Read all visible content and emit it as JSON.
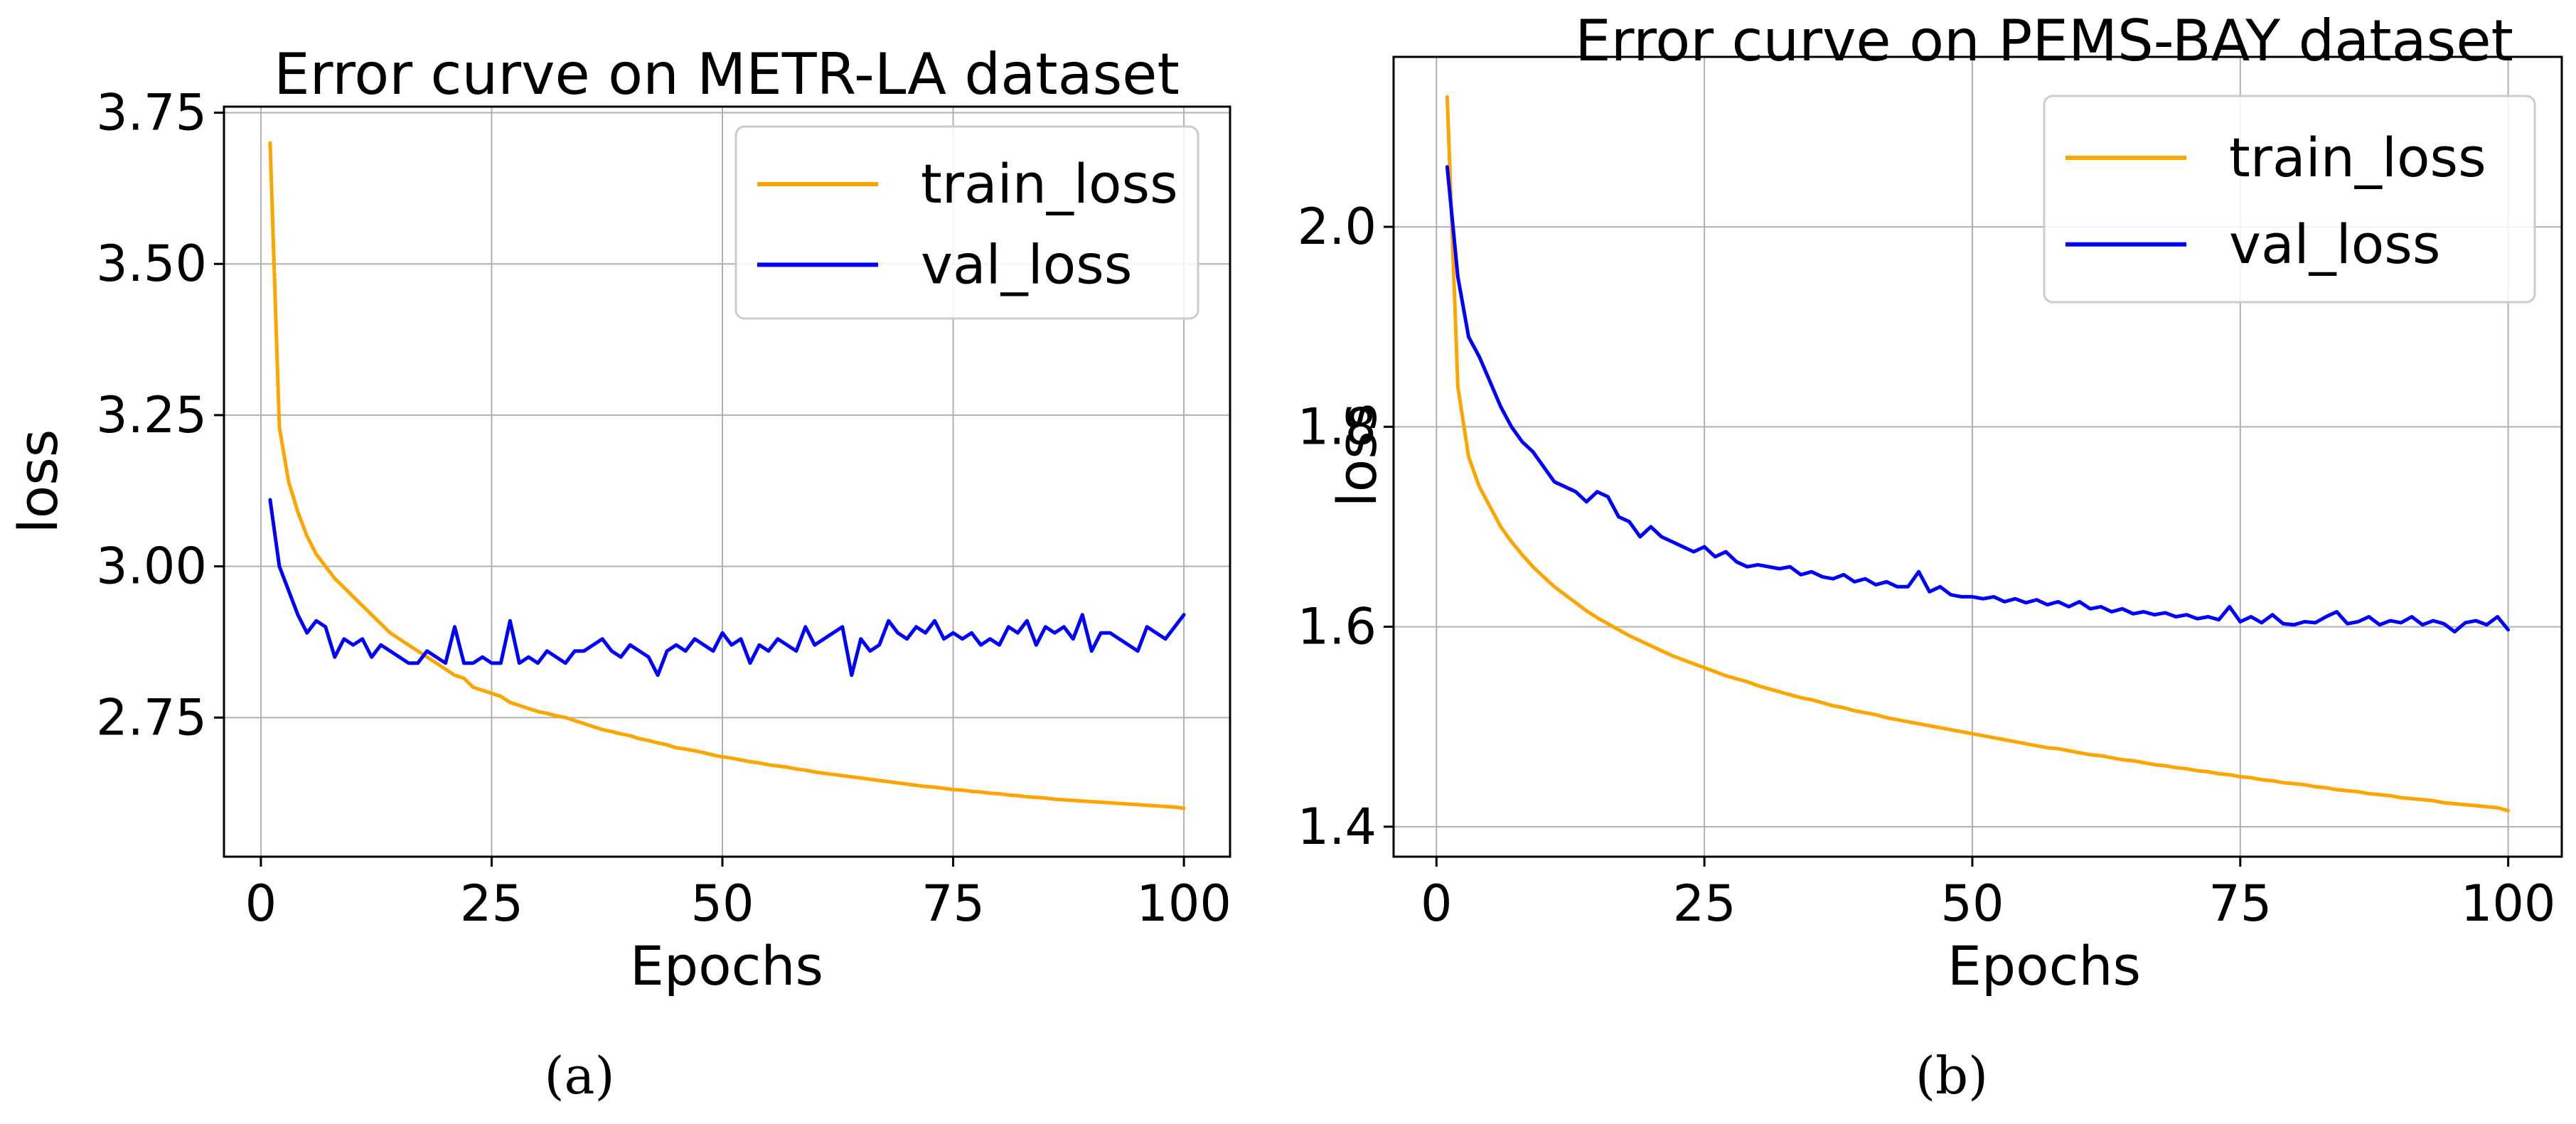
{
  "figure_captions": [
    "(a)",
    "(b)"
  ],
  "chart_data": [
    {
      "type": "line",
      "title": "Error curve on METR-LA dataset",
      "xlabel": "Epochs",
      "ylabel": "loss",
      "xlim": [
        -4,
        105
      ],
      "ylim": [
        2.52,
        3.76
      ],
      "xticks": [
        0,
        25,
        50,
        75,
        100
      ],
      "xtick_labels": [
        "0",
        "25",
        "50",
        "75",
        "100"
      ],
      "yticks": [
        2.75,
        3.0,
        3.25,
        3.5,
        3.75
      ],
      "ytick_labels": [
        "2.75",
        "3.00",
        "3.25",
        "3.50",
        "3.75"
      ],
      "grid": true,
      "legend_position": "top-right",
      "caption": "(a)",
      "series": [
        {
          "name": "train_loss",
          "color": "#FFA500",
          "x": [
            1,
            2,
            3,
            4,
            5,
            6,
            7,
            8,
            9,
            10,
            11,
            12,
            13,
            14,
            15,
            16,
            17,
            18,
            19,
            20,
            21,
            22,
            23,
            24,
            25,
            26,
            27,
            28,
            29,
            30,
            31,
            32,
            33,
            34,
            35,
            36,
            37,
            38,
            39,
            40,
            41,
            42,
            43,
            44,
            45,
            46,
            47,
            48,
            49,
            50,
            51,
            52,
            53,
            54,
            55,
            56,
            57,
            58,
            59,
            60,
            61,
            62,
            63,
            64,
            65,
            66,
            67,
            68,
            69,
            70,
            71,
            72,
            73,
            74,
            75,
            76,
            77,
            78,
            79,
            80,
            81,
            82,
            83,
            84,
            85,
            86,
            87,
            88,
            89,
            90,
            91,
            92,
            93,
            94,
            95,
            96,
            97,
            98,
            99,
            100
          ],
          "values": [
            3.7,
            3.23,
            3.14,
            3.09,
            3.05,
            3.02,
            3.0,
            2.98,
            2.965,
            2.95,
            2.935,
            2.92,
            2.905,
            2.89,
            2.88,
            2.87,
            2.86,
            2.85,
            2.84,
            2.83,
            2.82,
            2.815,
            2.8,
            2.795,
            2.79,
            2.785,
            2.775,
            2.77,
            2.765,
            2.76,
            2.757,
            2.753,
            2.75,
            2.745,
            2.74,
            2.735,
            2.73,
            2.727,
            2.723,
            2.72,
            2.715,
            2.712,
            2.708,
            2.705,
            2.7,
            2.698,
            2.695,
            2.692,
            2.688,
            2.685,
            2.683,
            2.68,
            2.677,
            2.675,
            2.672,
            2.67,
            2.668,
            2.665,
            2.663,
            2.66,
            2.658,
            2.656,
            2.654,
            2.652,
            2.65,
            2.648,
            2.646,
            2.644,
            2.642,
            2.64,
            2.638,
            2.636,
            2.635,
            2.633,
            2.631,
            2.63,
            2.628,
            2.627,
            2.625,
            2.624,
            2.622,
            2.621,
            2.619,
            2.618,
            2.617,
            2.615,
            2.614,
            2.613,
            2.612,
            2.611,
            2.61,
            2.609,
            2.608,
            2.607,
            2.606,
            2.605,
            2.604,
            2.603,
            2.602,
            2.6
          ]
        },
        {
          "name": "val_loss",
          "color": "#0000FF",
          "x": [
            1,
            2,
            3,
            4,
            5,
            6,
            7,
            8,
            9,
            10,
            11,
            12,
            13,
            14,
            15,
            16,
            17,
            18,
            19,
            20,
            21,
            22,
            23,
            24,
            25,
            26,
            27,
            28,
            29,
            30,
            31,
            32,
            33,
            34,
            35,
            36,
            37,
            38,
            39,
            40,
            41,
            42,
            43,
            44,
            45,
            46,
            47,
            48,
            49,
            50,
            51,
            52,
            53,
            54,
            55,
            56,
            57,
            58,
            59,
            60,
            61,
            62,
            63,
            64,
            65,
            66,
            67,
            68,
            69,
            70,
            71,
            72,
            73,
            74,
            75,
            76,
            77,
            78,
            79,
            80,
            81,
            82,
            83,
            84,
            85,
            86,
            87,
            88,
            89,
            90,
            91,
            92,
            93,
            94,
            95,
            96,
            97,
            98,
            99,
            100
          ],
          "values": [
            3.11,
            3.0,
            2.96,
            2.92,
            2.89,
            2.91,
            2.9,
            2.85,
            2.88,
            2.87,
            2.88,
            2.85,
            2.87,
            2.86,
            2.85,
            2.84,
            2.84,
            2.86,
            2.85,
            2.84,
            2.9,
            2.84,
            2.84,
            2.85,
            2.84,
            2.84,
            2.91,
            2.84,
            2.85,
            2.84,
            2.86,
            2.85,
            2.84,
            2.86,
            2.86,
            2.87,
            2.88,
            2.86,
            2.85,
            2.87,
            2.86,
            2.85,
            2.82,
            2.86,
            2.87,
            2.86,
            2.88,
            2.87,
            2.86,
            2.89,
            2.87,
            2.88,
            2.84,
            2.87,
            2.86,
            2.88,
            2.87,
            2.86,
            2.9,
            2.87,
            2.88,
            2.89,
            2.9,
            2.82,
            2.88,
            2.86,
            2.87,
            2.91,
            2.89,
            2.88,
            2.9,
            2.89,
            2.91,
            2.88,
            2.89,
            2.88,
            2.89,
            2.87,
            2.88,
            2.87,
            2.9,
            2.89,
            2.91,
            2.87,
            2.9,
            2.89,
            2.9,
            2.88,
            2.92,
            2.86,
            2.89,
            2.89,
            2.88,
            2.87,
            2.86,
            2.9,
            2.89,
            2.88,
            2.9,
            2.92
          ]
        }
      ]
    },
    {
      "type": "line",
      "title": "Error curve on PEMS-BAY dataset",
      "xlabel": "Epochs",
      "ylabel": "loss",
      "xlim": [
        -4,
        105
      ],
      "ylim": [
        1.37,
        2.17
      ],
      "xticks": [
        0,
        25,
        50,
        75,
        100
      ],
      "xtick_labels": [
        "0",
        "25",
        "50",
        "75",
        "100"
      ],
      "yticks": [
        1.4,
        1.6,
        1.8,
        2.0
      ],
      "ytick_labels": [
        "1.4",
        "1.6",
        "1.8",
        "2.0"
      ],
      "grid": true,
      "legend_position": "top-right",
      "caption": "(b)",
      "series": [
        {
          "name": "train_loss",
          "color": "#FFA500",
          "x": [
            1,
            2,
            3,
            4,
            5,
            6,
            7,
            8,
            9,
            10,
            11,
            12,
            13,
            14,
            15,
            16,
            17,
            18,
            19,
            20,
            21,
            22,
            23,
            24,
            25,
            26,
            27,
            28,
            29,
            30,
            31,
            32,
            33,
            34,
            35,
            36,
            37,
            38,
            39,
            40,
            41,
            42,
            43,
            44,
            45,
            46,
            47,
            48,
            49,
            50,
            51,
            52,
            53,
            54,
            55,
            56,
            57,
            58,
            59,
            60,
            61,
            62,
            63,
            64,
            65,
            66,
            67,
            68,
            69,
            70,
            71,
            72,
            73,
            74,
            75,
            76,
            77,
            78,
            79,
            80,
            81,
            82,
            83,
            84,
            85,
            86,
            87,
            88,
            89,
            90,
            91,
            92,
            93,
            94,
            95,
            96,
            97,
            98,
            99,
            100
          ],
          "values": [
            2.13,
            1.84,
            1.77,
            1.74,
            1.72,
            1.7,
            1.685,
            1.672,
            1.66,
            1.65,
            1.64,
            1.632,
            1.624,
            1.616,
            1.609,
            1.603,
            1.597,
            1.591,
            1.586,
            1.581,
            1.576,
            1.571,
            1.567,
            1.563,
            1.559,
            1.555,
            1.551,
            1.548,
            1.545,
            1.541,
            1.538,
            1.535,
            1.532,
            1.529,
            1.527,
            1.524,
            1.521,
            1.519,
            1.516,
            1.514,
            1.512,
            1.509,
            1.507,
            1.505,
            1.503,
            1.501,
            1.499,
            1.497,
            1.495,
            1.493,
            1.491,
            1.489,
            1.487,
            1.485,
            1.483,
            1.481,
            1.479,
            1.478,
            1.476,
            1.474,
            1.472,
            1.471,
            1.469,
            1.467,
            1.466,
            1.464,
            1.462,
            1.461,
            1.459,
            1.458,
            1.456,
            1.455,
            1.453,
            1.452,
            1.45,
            1.449,
            1.447,
            1.446,
            1.444,
            1.443,
            1.442,
            1.44,
            1.439,
            1.437,
            1.436,
            1.435,
            1.433,
            1.432,
            1.431,
            1.429,
            1.428,
            1.427,
            1.426,
            1.424,
            1.423,
            1.422,
            1.421,
            1.42,
            1.419,
            1.416
          ]
        },
        {
          "name": "val_loss",
          "color": "#0000FF",
          "x": [
            1,
            2,
            3,
            4,
            5,
            6,
            7,
            8,
            9,
            10,
            11,
            12,
            13,
            14,
            15,
            16,
            17,
            18,
            19,
            20,
            21,
            22,
            23,
            24,
            25,
            26,
            27,
            28,
            29,
            30,
            31,
            32,
            33,
            34,
            35,
            36,
            37,
            38,
            39,
            40,
            41,
            42,
            43,
            44,
            45,
            46,
            47,
            48,
            49,
            50,
            51,
            52,
            53,
            54,
            55,
            56,
            57,
            58,
            59,
            60,
            61,
            62,
            63,
            64,
            65,
            66,
            67,
            68,
            69,
            70,
            71,
            72,
            73,
            74,
            75,
            76,
            77,
            78,
            79,
            80,
            81,
            82,
            83,
            84,
            85,
            86,
            87,
            88,
            89,
            90,
            91,
            92,
            93,
            94,
            95,
            96,
            97,
            98,
            99,
            100
          ],
          "values": [
            2.06,
            1.95,
            1.89,
            1.87,
            1.845,
            1.82,
            1.8,
            1.785,
            1.775,
            1.76,
            1.745,
            1.74,
            1.735,
            1.725,
            1.735,
            1.73,
            1.71,
            1.705,
            1.69,
            1.7,
            1.69,
            1.685,
            1.68,
            1.675,
            1.68,
            1.67,
            1.675,
            1.665,
            1.66,
            1.662,
            1.66,
            1.658,
            1.66,
            1.652,
            1.655,
            1.65,
            1.648,
            1.652,
            1.645,
            1.648,
            1.642,
            1.645,
            1.64,
            1.64,
            1.655,
            1.635,
            1.64,
            1.632,
            1.63,
            1.63,
            1.628,
            1.63,
            1.625,
            1.628,
            1.624,
            1.627,
            1.622,
            1.625,
            1.62,
            1.625,
            1.618,
            1.62,
            1.615,
            1.618,
            1.613,
            1.615,
            1.612,
            1.614,
            1.61,
            1.612,
            1.608,
            1.61,
            1.607,
            1.62,
            1.605,
            1.61,
            1.604,
            1.612,
            1.603,
            1.602,
            1.605,
            1.604,
            1.61,
            1.615,
            1.603,
            1.605,
            1.61,
            1.602,
            1.606,
            1.604,
            1.61,
            1.602,
            1.606,
            1.603,
            1.595,
            1.604,
            1.606,
            1.602,
            1.61,
            1.597
          ]
        }
      ]
    }
  ]
}
